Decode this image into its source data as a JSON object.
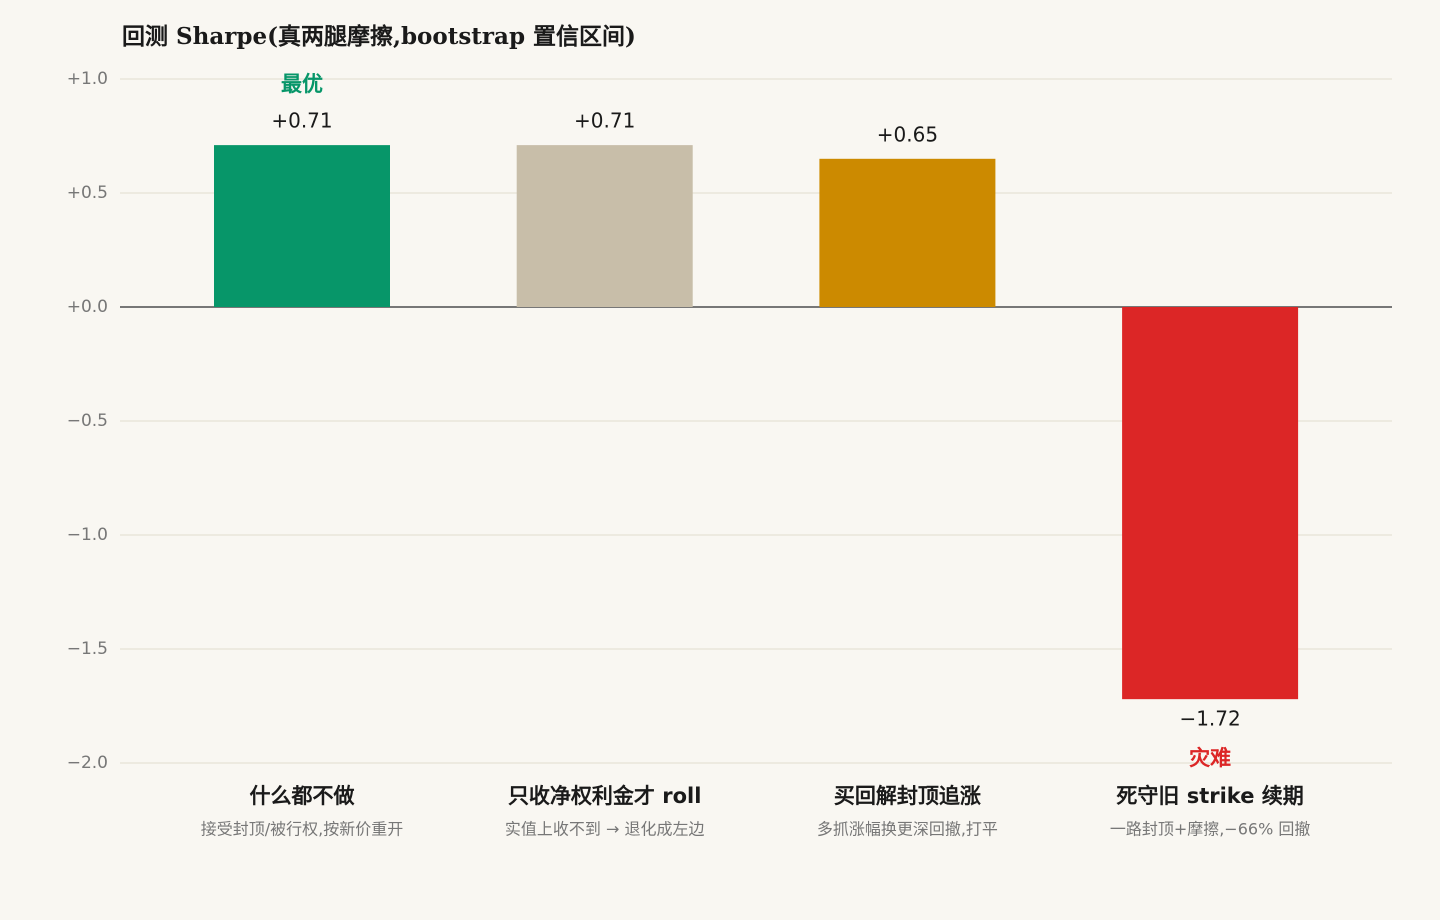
{
  "chart_data": {
    "type": "bar",
    "title": "回测 Sharpe(真两腿摩擦,bootstrap 置信区间)",
    "categories": [
      "什么都不做",
      "只收净权利金才 roll",
      "买回解封顶追涨",
      "死守旧 strike 续期"
    ],
    "descriptions": [
      "接受封顶/被行权,按新价重开",
      "实值上收不到 → 退化成左边",
      "多抓涨幅换更深回撤,打平",
      "一路封顶+摩擦,−66% 回撤"
    ],
    "values": [
      0.71,
      0.71,
      0.65,
      -1.72
    ],
    "value_labels": [
      "+0.71",
      "+0.71",
      "+0.65",
      "−1.72"
    ],
    "annotations": [
      "最优",
      null,
      null,
      "灾难"
    ],
    "colors": [
      "#079669",
      "#c8bea9",
      "#cc8a00",
      "#dc2626"
    ],
    "ylim": [
      -2,
      1
    ],
    "yticks": [
      {
        "value": 1,
        "label": "+1.0"
      },
      {
        "value": 0.5,
        "label": "+0.5"
      },
      {
        "value": 0,
        "label": "+0.0"
      },
      {
        "value": -0.5,
        "label": "−0.5"
      },
      {
        "value": -1,
        "label": "−1.0"
      },
      {
        "value": -1.5,
        "label": "−1.5"
      },
      {
        "value": -2,
        "label": "−2.0"
      }
    ],
    "grid": true
  }
}
